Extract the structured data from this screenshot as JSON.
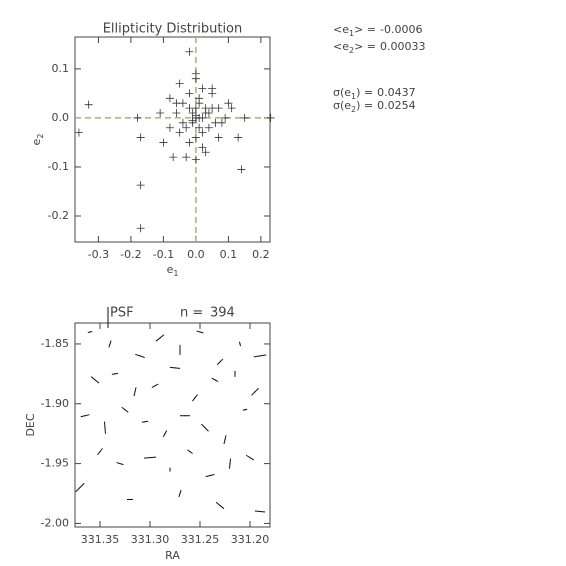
{
  "chart_data": [
    {
      "type": "scatter",
      "title": "Ellipticity Distribution",
      "xlabel": "e",
      "xlabel_sub": "1",
      "ylabel": "e",
      "ylabel_sub": "2",
      "xlim": [
        -0.372,
        0.228
      ],
      "ylim": [
        -0.253,
        0.165
      ],
      "xticks": [
        -0.3,
        -0.2,
        -0.1,
        {
          "value": 0,
          "label": "0.0"
        },
        0.1,
        0.2
      ],
      "yticks": [
        -0.2,
        -0.1,
        {
          "value": 0,
          "label": "0.0"
        },
        0.1
      ],
      "color": "#333333",
      "zero_line_color": "#b8ac70",
      "x": [
        -0.33,
        -0.36,
        -0.17,
        -0.17,
        -0.02,
        0.14,
        0.23,
        -0.18,
        -0.17,
        -0.11,
        -0.08,
        -0.07,
        -0.05,
        0.0,
        0.02,
        0.05,
        0.1,
        0.13,
        -0.03,
        0.0,
        0.03,
        0.09,
        0.15,
        0.07,
        0.0,
        -0.04,
        -0.06,
        -0.02,
        0.01,
        0.03,
        0.04,
        -0.01,
        0.02,
        0.0,
        -0.03,
        0.05,
        0.06,
        -0.05,
        0.01,
        -0.02,
        0.03,
        0.0,
        0.02,
        -0.01,
        0.04,
        -0.04,
        0.01,
        0.0,
        -0.02,
        0.02,
        0.07,
        -0.08,
        0.08,
        -0.06,
        0.05,
        -0.1,
        0.11,
        0.0,
        -0.01,
        0.01
      ],
      "y": [
        0.027,
        -0.03,
        -0.137,
        -0.225,
        0.135,
        -0.105,
        0.0,
        0.0,
        -0.04,
        0.01,
        0.04,
        -0.08,
        0.07,
        0.09,
        0.06,
        0.05,
        0.03,
        -0.04,
        -0.08,
        -0.085,
        -0.07,
        0.0,
        0.0,
        -0.04,
        0.08,
        0.03,
        0.01,
        0.02,
        0.03,
        0.01,
        -0.02,
        -0.01,
        -0.03,
        0.0,
        -0.02,
        0.02,
        -0.01,
        -0.03,
        0.04,
        0.05,
        0.02,
        -0.04,
        0.0,
        0.01,
        0.01,
        -0.01,
        -0.02,
        0.02,
        -0.05,
        -0.06,
        0.02,
        -0.02,
        -0.01,
        0.03,
        0.06,
        -0.05,
        0.02,
        0.005,
        -0.005,
        0.0
      ]
    },
    {
      "type": "whisker",
      "title": "PSF",
      "n_label": "n =",
      "n": 394,
      "xlabel": "RA",
      "ylabel": "DEC",
      "xlim": [
        331.375,
        331.18
      ],
      "ylim": [
        -2.003,
        -1.8325
      ],
      "xticks": [
        331.35,
        {
          "value": 331.3,
          "label": "331.30"
        },
        331.25,
        {
          "value": 331.2,
          "label": "331.20"
        }
      ],
      "yticks": [
        -1.85,
        {
          "value": -1.9,
          "label": "-1.90"
        },
        -1.95,
        {
          "value": -2,
          "label": "-2.00"
        }
      ],
      "color": "#111111",
      "ra": [
        331.36,
        331.34,
        331.31,
        331.29,
        331.27,
        331.25,
        331.23,
        331.21,
        331.19,
        331.355,
        331.335,
        331.315,
        331.295,
        331.275,
        331.255,
        331.235,
        331.215,
        331.195,
        331.365,
        331.345,
        331.325,
        331.305,
        331.285,
        331.265,
        331.245,
        331.225,
        331.205,
        331.35,
        331.33,
        331.3,
        331.28,
        331.26,
        331.24,
        331.22,
        331.2,
        331.37,
        331.32,
        331.27,
        331.23,
        331.19
      ],
      "dec": [
        -1.84,
        -1.85,
        -1.86,
        -1.845,
        -1.855,
        -1.84,
        -1.865,
        -1.85,
        -1.86,
        -1.88,
        -1.875,
        -1.89,
        -1.885,
        -1.87,
        -1.895,
        -1.88,
        -1.875,
        -1.89,
        -1.91,
        -1.92,
        -1.905,
        -1.915,
        -1.925,
        -1.91,
        -1.92,
        -1.93,
        -1.905,
        -1.94,
        -1.95,
        -1.945,
        -1.955,
        -1.94,
        -1.96,
        -1.95,
        -1.945,
        -1.97,
        -1.98,
        -1.975,
        -1.985,
        -1.99
      ],
      "e1": [
        0.02,
        -0.03,
        0.04,
        0.01,
        -0.05,
        0.03,
        0.0,
        -0.02,
        0.06,
        0.01,
        0.03,
        -0.04,
        0.02,
        0.05,
        -0.01,
        0.02,
        -0.03,
        0.0,
        0.04,
        -0.06,
        0.01,
        0.03,
        -0.02,
        0.05,
        0.0,
        -0.04,
        0.02,
        -0.01,
        0.03,
        0.06,
        -0.02,
        0.01,
        0.04,
        -0.05,
        0.02,
        0.0,
        0.03,
        -0.03,
        0.01,
        0.05
      ],
      "e2": [
        0.01,
        0.02,
        -0.03,
        0.05,
        0.0,
        -0.02,
        0.04,
        -0.01,
        0.02,
        -0.05,
        0.01,
        0.02,
        0.03,
        -0.01,
        0.04,
        -0.03,
        0.0,
        0.05,
        0.02,
        -0.01,
        -0.04,
        0.01,
        0.03,
        0.0,
        -0.05,
        0.02,
        0.01,
        0.04,
        -0.02,
        0.01,
        0.0,
        -0.03,
        0.02,
        0.01,
        -0.04,
        0.06,
        0.0,
        0.02,
        -0.05,
        -0.01
      ]
    }
  ],
  "stats": [
    {
      "prefix": "<e",
      "sub": "1",
      "suffix": "> =",
      "value": -0.0006
    },
    {
      "prefix": "<e",
      "sub": "2",
      "suffix": "> =",
      "value": 0.00033
    },
    {
      "prefix": "σ(e",
      "sub": "1",
      "suffix": ") =",
      "value": 0.0437
    },
    {
      "prefix": "σ(e",
      "sub": "2",
      "suffix": ") =",
      "value": 0.0254
    }
  ]
}
